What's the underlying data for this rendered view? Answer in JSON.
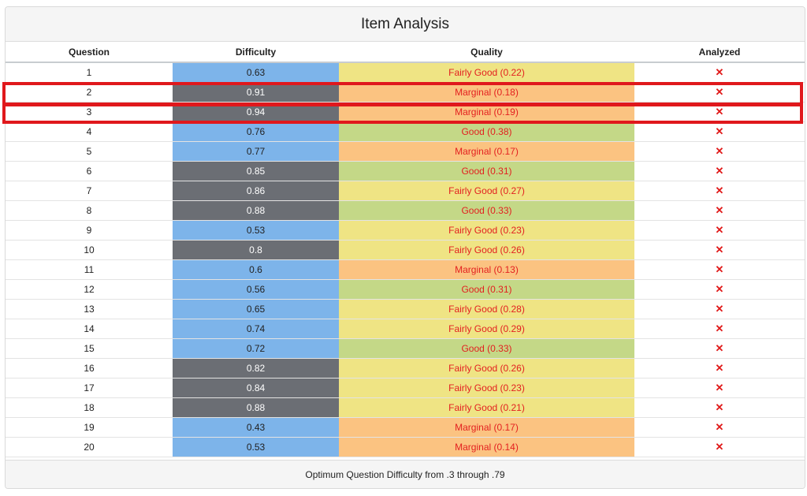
{
  "title": "Item Analysis",
  "columns": [
    "Question",
    "Difficulty",
    "Quality",
    "Analyzed"
  ],
  "rows": [
    {
      "question": "1",
      "difficulty": "0.63",
      "quality": "Fairly Good (0.22)",
      "diff_level": "blue",
      "quality_level": "yellow",
      "analyzed": "✕"
    },
    {
      "question": "2",
      "difficulty": "0.91",
      "quality": "Marginal (0.18)",
      "diff_level": "gray",
      "quality_level": "orange",
      "analyzed": "✕"
    },
    {
      "question": "3",
      "difficulty": "0.94",
      "quality": "Marginal (0.19)",
      "diff_level": "gray",
      "quality_level": "orange",
      "analyzed": "✕"
    },
    {
      "question": "4",
      "difficulty": "0.76",
      "quality": "Good (0.38)",
      "diff_level": "blue",
      "quality_level": "green",
      "analyzed": "✕"
    },
    {
      "question": "5",
      "difficulty": "0.77",
      "quality": "Marginal (0.17)",
      "diff_level": "blue",
      "quality_level": "orange",
      "analyzed": "✕"
    },
    {
      "question": "6",
      "difficulty": "0.85",
      "quality": "Good (0.31)",
      "diff_level": "gray",
      "quality_level": "green",
      "analyzed": "✕"
    },
    {
      "question": "7",
      "difficulty": "0.86",
      "quality": "Fairly Good (0.27)",
      "diff_level": "gray",
      "quality_level": "yellow",
      "analyzed": "✕"
    },
    {
      "question": "8",
      "difficulty": "0.88",
      "quality": "Good (0.33)",
      "diff_level": "gray",
      "quality_level": "green",
      "analyzed": "✕"
    },
    {
      "question": "9",
      "difficulty": "0.53",
      "quality": "Fairly Good (0.23)",
      "diff_level": "blue",
      "quality_level": "yellow",
      "analyzed": "✕"
    },
    {
      "question": "10",
      "difficulty": "0.8",
      "quality": "Fairly Good (0.26)",
      "diff_level": "gray",
      "quality_level": "yellow",
      "analyzed": "✕"
    },
    {
      "question": "11",
      "difficulty": "0.6",
      "quality": "Marginal (0.13)",
      "diff_level": "blue",
      "quality_level": "orange",
      "analyzed": "✕"
    },
    {
      "question": "12",
      "difficulty": "0.56",
      "quality": "Good (0.31)",
      "diff_level": "blue",
      "quality_level": "green",
      "analyzed": "✕"
    },
    {
      "question": "13",
      "difficulty": "0.65",
      "quality": "Fairly Good (0.28)",
      "diff_level": "blue",
      "quality_level": "yellow",
      "analyzed": "✕"
    },
    {
      "question": "14",
      "difficulty": "0.74",
      "quality": "Fairly Good (0.29)",
      "diff_level": "blue",
      "quality_level": "yellow",
      "analyzed": "✕"
    },
    {
      "question": "15",
      "difficulty": "0.72",
      "quality": "Good (0.33)",
      "diff_level": "blue",
      "quality_level": "green",
      "analyzed": "✕"
    },
    {
      "question": "16",
      "difficulty": "0.82",
      "quality": "Fairly Good (0.26)",
      "diff_level": "gray",
      "quality_level": "yellow",
      "analyzed": "✕"
    },
    {
      "question": "17",
      "difficulty": "0.84",
      "quality": "Fairly Good (0.23)",
      "diff_level": "gray",
      "quality_level": "yellow",
      "analyzed": "✕"
    },
    {
      "question": "18",
      "difficulty": "0.88",
      "quality": "Fairly Good (0.21)",
      "diff_level": "gray",
      "quality_level": "yellow",
      "analyzed": "✕"
    },
    {
      "question": "19",
      "difficulty": "0.43",
      "quality": "Marginal (0.17)",
      "diff_level": "blue",
      "quality_level": "orange",
      "analyzed": "✕"
    },
    {
      "question": "20",
      "difficulty": "0.53",
      "quality": "Marginal (0.14)",
      "diff_level": "blue",
      "quality_level": "orange",
      "analyzed": "✕"
    }
  ],
  "footer": "Optimum Question Difficulty from .3 through .79",
  "highlighted_rows": [
    "2",
    "3"
  ],
  "colors": {
    "difficulty_blue": "#7db4ea",
    "difficulty_gray": "#6b6e74",
    "quality_yellow": "#efe484",
    "quality_orange": "#fbc381",
    "quality_green": "#c4d887",
    "text_red": "#e32020",
    "highlight_red": "#e0181c"
  }
}
